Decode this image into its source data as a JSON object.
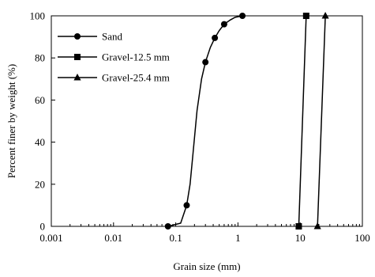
{
  "chart_data": {
    "type": "line",
    "title": "",
    "xlabel": "Grain size (mm)",
    "ylabel": "Percent finer by weight (%)",
    "x_scale": "log",
    "xlim": [
      0.001,
      100
    ],
    "ylim": [
      0,
      100
    ],
    "x_ticks": [
      0.001,
      0.01,
      0.1,
      1,
      10,
      100
    ],
    "x_tick_labels": [
      "0.001",
      "0.01",
      "0.1",
      "1",
      "10",
      "100"
    ],
    "y_ticks": [
      0,
      20,
      40,
      60,
      80,
      100
    ],
    "y_tick_labels": [
      "0",
      "20",
      "40",
      "60",
      "80",
      "100"
    ],
    "grid": false,
    "legend_position": "top-left",
    "series": [
      {
        "name": "Sand",
        "marker": "circle",
        "points": [
          [
            0.075,
            0
          ],
          [
            0.15,
            10
          ],
          [
            0.3,
            78
          ],
          [
            0.425,
            89.5
          ],
          [
            0.6,
            96
          ],
          [
            1.18,
            100
          ]
        ],
        "curve": [
          [
            0.075,
            0
          ],
          [
            0.12,
            1.5
          ],
          [
            0.15,
            10
          ],
          [
            0.17,
            20
          ],
          [
            0.19,
            35
          ],
          [
            0.22,
            55
          ],
          [
            0.26,
            70
          ],
          [
            0.3,
            78
          ],
          [
            0.36,
            85
          ],
          [
            0.425,
            89.5
          ],
          [
            0.5,
            93
          ],
          [
            0.6,
            96
          ],
          [
            0.75,
            98
          ],
          [
            0.9,
            99.3
          ],
          [
            1.18,
            100
          ]
        ]
      },
      {
        "name": "Gravel-12.5 mm",
        "marker": "square",
        "points": [
          [
            9.5,
            0
          ],
          [
            12.5,
            100
          ]
        ],
        "curve": [
          [
            9.5,
            0
          ],
          [
            12.5,
            100
          ]
        ]
      },
      {
        "name": "Gravel-25.4 mm",
        "marker": "triangle",
        "points": [
          [
            19,
            0
          ],
          [
            25.4,
            100
          ]
        ],
        "curve": [
          [
            19,
            0
          ],
          [
            25.4,
            100
          ]
        ]
      }
    ]
  }
}
